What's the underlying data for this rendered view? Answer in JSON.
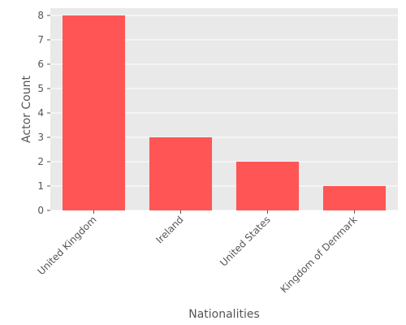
{
  "chart_data": {
    "type": "bar",
    "title": "",
    "xlabel": "Nationalities",
    "ylabel": "Actor Count",
    "categories": [
      "United Kingdom",
      "Ireland",
      "United States",
      "Kingdom of Denmark"
    ],
    "values": [
      8,
      3,
      2,
      1
    ],
    "ylim": [
      0,
      8.3
    ],
    "yticks": [
      0,
      1,
      2,
      3,
      4,
      5,
      6,
      7,
      8
    ],
    "grid": true,
    "legend": "none",
    "colors": {
      "bar": "#ff5555",
      "plot_background": "#e9e9e9",
      "grid": "#ffffff",
      "text": "#555555"
    }
  }
}
